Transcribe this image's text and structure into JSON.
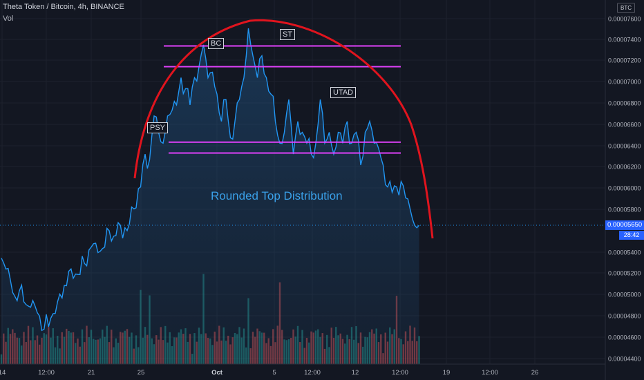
{
  "header": {
    "title": "Theta Token / Bitcoin, 4h, BINANCE",
    "volume_label": "Vol"
  },
  "currency_badge": "BTC",
  "current_price_label": "0.00005650",
  "countdown_label": "28:42",
  "wyckoff_labels": {
    "psy": "PSY",
    "bc": "BC",
    "st": "ST",
    "utad": "UTAD"
  },
  "annotation": "Rounded Top Distribution",
  "colors": {
    "background": "#131722",
    "price_line": "#2196f3",
    "price_fill": "#1f4e7a",
    "volume_up": "#26a69a",
    "volume_down": "#ef5350",
    "curve": "#e0141e",
    "level_lines": "#e040fb",
    "price_tag": "#2962ff",
    "annotation_text": "#3aa0e8"
  },
  "chart_data": {
    "type": "area",
    "title": "Theta Token / Bitcoin, 4h, BINANCE",
    "xlabel": "",
    "ylabel": "",
    "x_tick_labels": [
      "14",
      "12:00",
      "21",
      "25",
      "Oct",
      "5",
      "12:00",
      "12",
      "12:00",
      "19",
      "12:00",
      "26"
    ],
    "y_tick_labels": [
      "0.00007600",
      "0.00007400",
      "0.00007200",
      "0.00007000",
      "0.00006800",
      "0.00006600",
      "0.00006400",
      "0.00006200",
      "0.00006000",
      "0.00005800",
      "0.00005400",
      "0.00005200",
      "0.00005000",
      "0.00004800",
      "0.00004600",
      "0.00004400"
    ],
    "ylim": [
      4.38e-05,
      7.71e-05
    ],
    "grid": true,
    "price_keypoints": {
      "bar_index": [
        0,
        2,
        4,
        6,
        8,
        10,
        13,
        16,
        19,
        22,
        25,
        28,
        31,
        34,
        37,
        40,
        43,
        46,
        48,
        50,
        53,
        56,
        59,
        62,
        64,
        66,
        68,
        70,
        72,
        74,
        76,
        78,
        80,
        82,
        84,
        86,
        88,
        90,
        92,
        94,
        96,
        98,
        100,
        102,
        104,
        106,
        108,
        110,
        112,
        114,
        116,
        118,
        120,
        122,
        124,
        126,
        128,
        130,
        132,
        134,
        136,
        138,
        140,
        142,
        144,
        146,
        148,
        150,
        152,
        154,
        156,
        158,
        160,
        162,
        164,
        166,
        168,
        170,
        172,
        174,
        176,
        178,
        180,
        182,
        184,
        186
      ],
      "close": [
        5.35e-05,
        5.25e-05,
        5.15e-05,
        5e-05,
        5.05e-05,
        4.95e-05,
        4.9e-05,
        4.85e-05,
        4.7e-05,
        4.8e-05,
        4.95e-05,
        5.1e-05,
        5.25e-05,
        5.2e-05,
        5.3e-05,
        5.45e-05,
        5.4e-05,
        5.45e-05,
        5.6e-05,
        5.55e-05,
        5.65e-05,
        5.6e-05,
        5.8e-05,
        6e-05,
        6.3e-05,
        6.25e-05,
        6.65e-05,
        6.5e-05,
        6.4e-05,
        6.65e-05,
        6.7e-05,
        6.75e-05,
        7e-05,
        6.9e-05,
        6.75e-05,
        7e-05,
        7.1e-05,
        7.3e-05,
        7e-05,
        7.05e-05,
        6.85e-05,
        6.6e-05,
        6.8e-05,
        6.45e-05,
        6.6e-05,
        6.8e-05,
        7e-05,
        7.45e-05,
        7.2e-05,
        7e-05,
        7.2e-05,
        7e-05,
        6.85e-05,
        6.6e-05,
        6.4e-05,
        6.5e-05,
        6.8e-05,
        6.3e-05,
        6.6e-05,
        6.5e-05,
        6.4e-05,
        6.3e-05,
        6.4e-05,
        6.8e-05,
        6.4e-05,
        6.5e-05,
        6.3e-05,
        6.5e-05,
        6.4e-05,
        6.6e-05,
        6.4e-05,
        6.5e-05,
        6.2e-05,
        6.5e-05,
        6.6e-05,
        6.4e-05,
        6.35e-05,
        6.2e-05,
        6e-05,
        5.95e-05,
        6e-05,
        6.05e-05,
        5.9e-05,
        5.8e-05,
        5.65e-05,
        5.65e-05
      ]
    },
    "series": [
      {
        "name": "Vol"
      }
    ],
    "resistance_lines": [
      7.29e-05,
      7.1e-05
    ],
    "support_lines": [
      6.41e-05,
      6.31e-05
    ],
    "legend_position": "top-left"
  }
}
